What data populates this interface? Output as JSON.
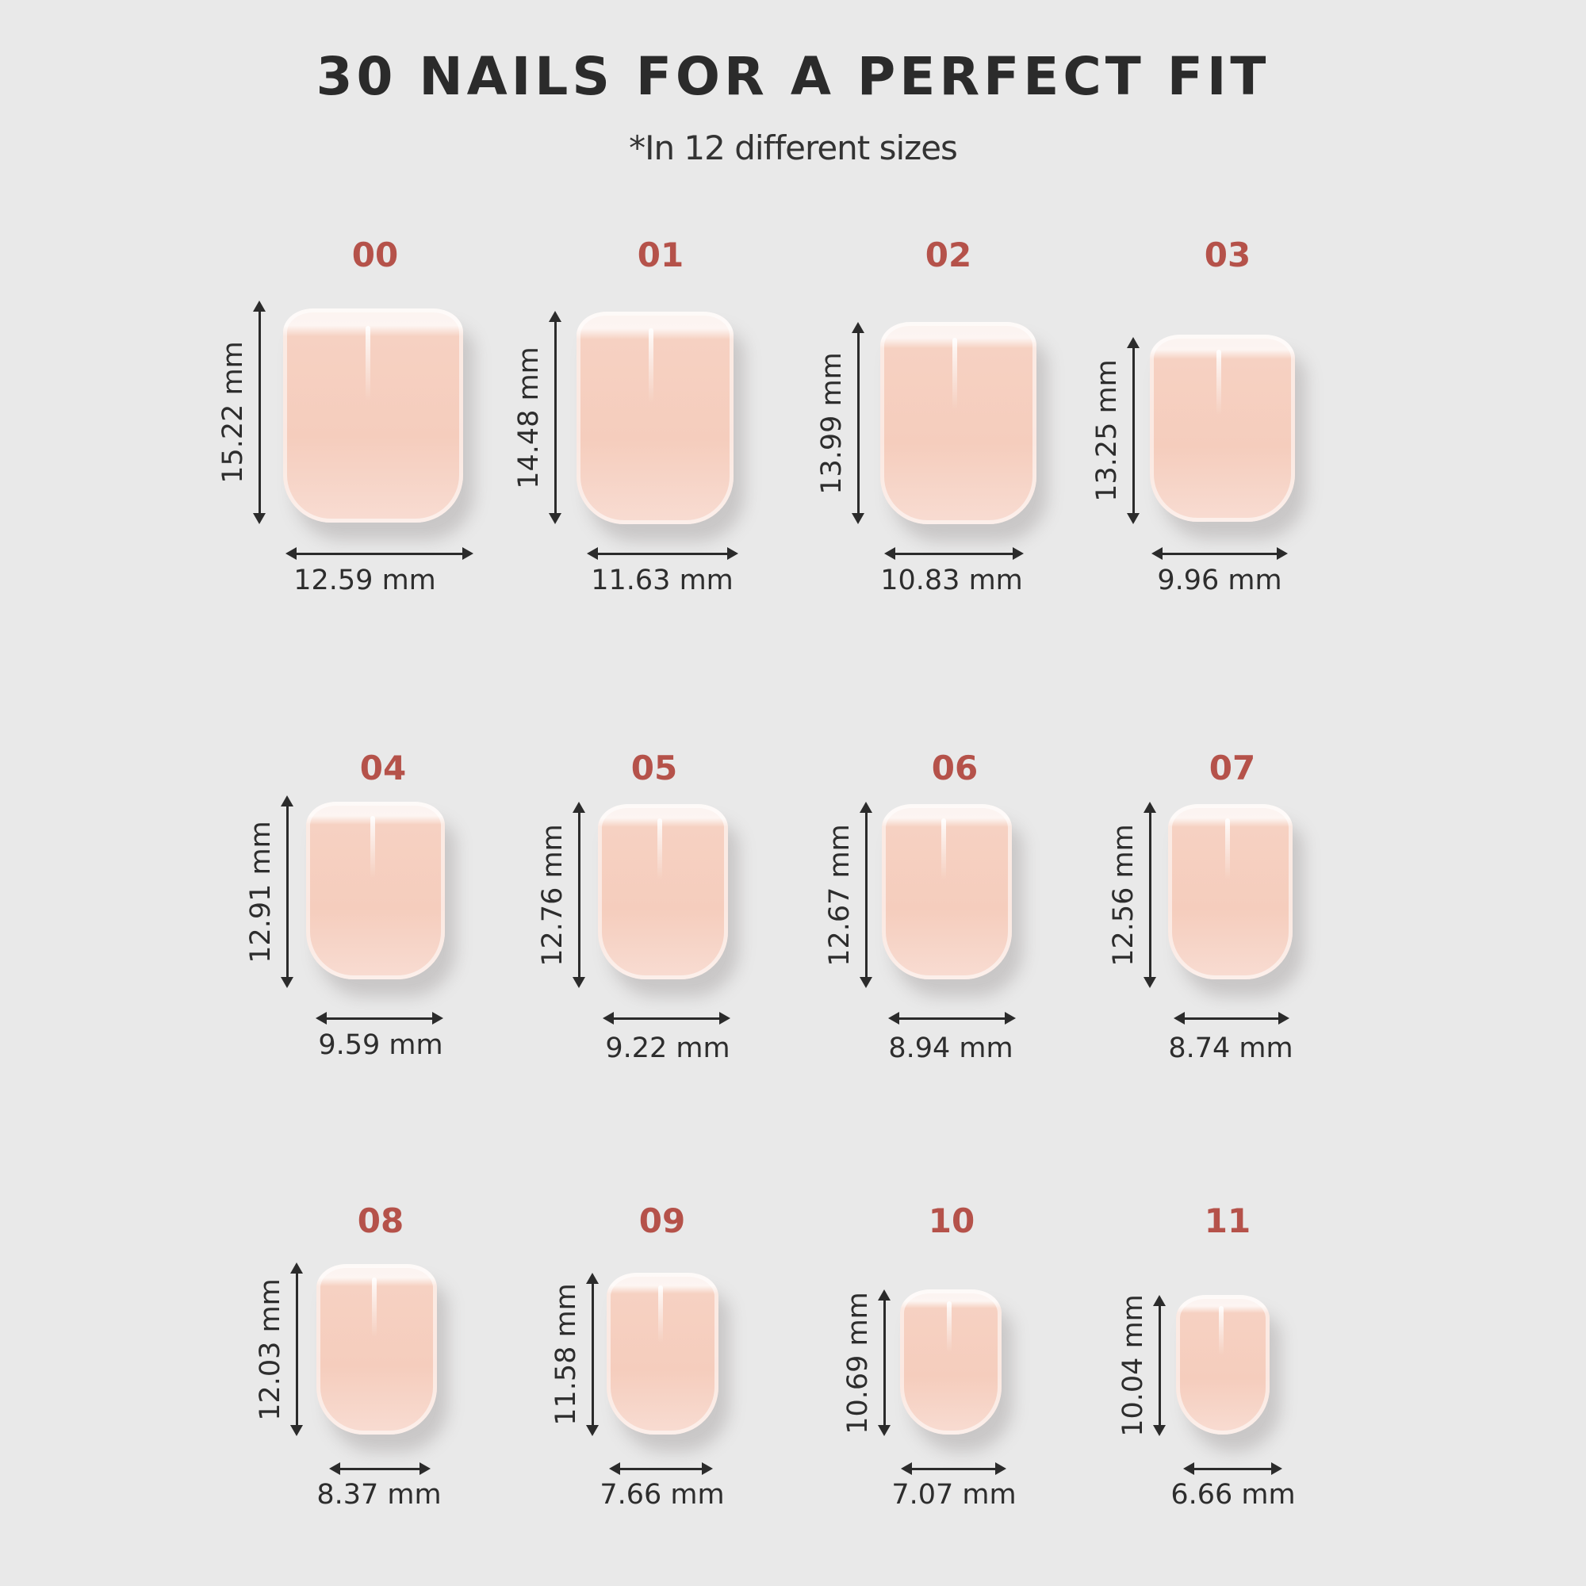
{
  "header": {
    "title": "30 NAILS FOR A PERFECT FIT",
    "subtitle": "*In 12 different sizes"
  },
  "colors": {
    "size_label": "#b5524a",
    "background": "#e9e9e9",
    "text": "#2d2d2d"
  },
  "nails": [
    {
      "size": "00",
      "height": "15.22 mm",
      "width": "12.59 mm"
    },
    {
      "size": "01",
      "height": "14.48 mm",
      "width": "11.63 mm"
    },
    {
      "size": "02",
      "height": "13.99 mm",
      "width": "10.83 mm"
    },
    {
      "size": "03",
      "height": "13.25 mm",
      "width": "9.96 mm"
    },
    {
      "size": "04",
      "height": "12.91 mm",
      "width": "9.59 mm"
    },
    {
      "size": "05",
      "height": "12.76 mm",
      "width": "9.22 mm"
    },
    {
      "size": "06",
      "height": "12.67 mm",
      "width": "8.94 mm"
    },
    {
      "size": "07",
      "height": "12.56 mm",
      "width": "8.74 mm"
    },
    {
      "size": "08",
      "height": "12.03 mm",
      "width": "8.37 mm"
    },
    {
      "size": "09",
      "height": "11.58 mm",
      "width": "7.66 mm"
    },
    {
      "size": "10",
      "height": "10.69 mm",
      "width": "7.07 mm"
    },
    {
      "size": "11",
      "height": "10.04 mm",
      "width": "6.66 mm"
    }
  ]
}
